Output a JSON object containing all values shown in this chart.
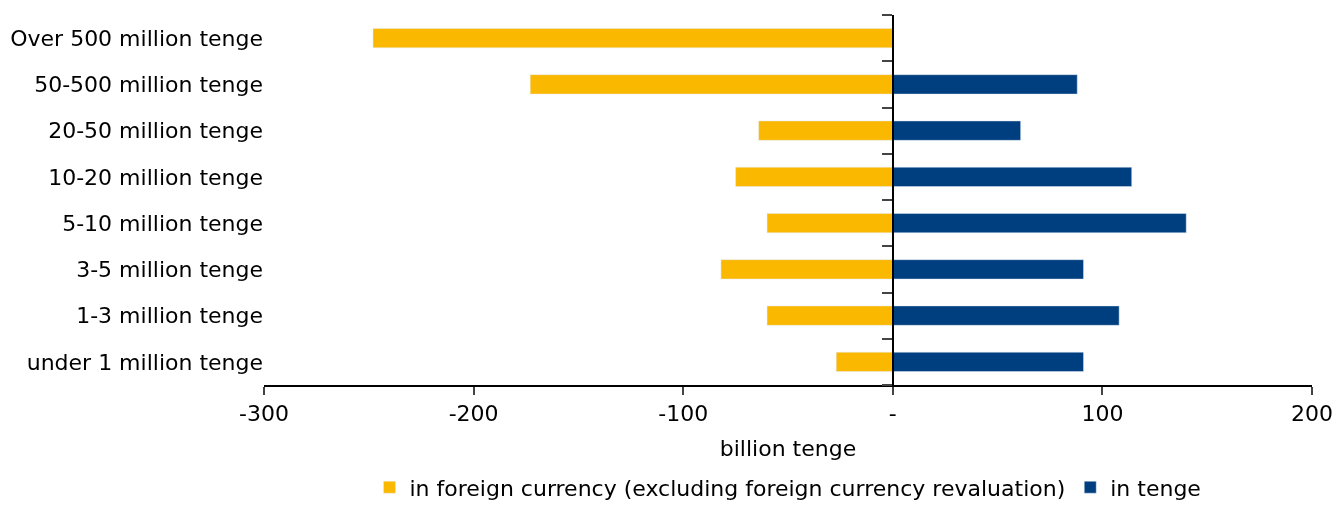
{
  "chart_data": {
    "type": "bar",
    "orientation": "horizontal",
    "stacked": true,
    "categories": [
      "Over 500 million tenge",
      "50-500 million tenge",
      "20-50 million tenge",
      "10-20 million tenge",
      "5-10 million tenge",
      "3-5 million tenge",
      "1-3 million tenge",
      "under 1 million tenge"
    ],
    "series": [
      {
        "name": "in foreign currency (excluding foreign currency revaluation)",
        "color": "#fbb800",
        "values": [
          -248,
          -173,
          -64,
          -75,
          -60,
          -82,
          -60,
          -27
        ]
      },
      {
        "name": "in tenge",
        "color": "#003f7f",
        "values": [
          null,
          88,
          61,
          114,
          140,
          91,
          108,
          91
        ]
      }
    ],
    "xlim": [
      -300,
      200
    ],
    "xticks": [
      -300,
      -200,
      -100,
      {
        "value": 0,
        "label": "-"
      },
      100,
      200
    ],
    "xlabel": "billion tenge",
    "legend": "bottom"
  }
}
